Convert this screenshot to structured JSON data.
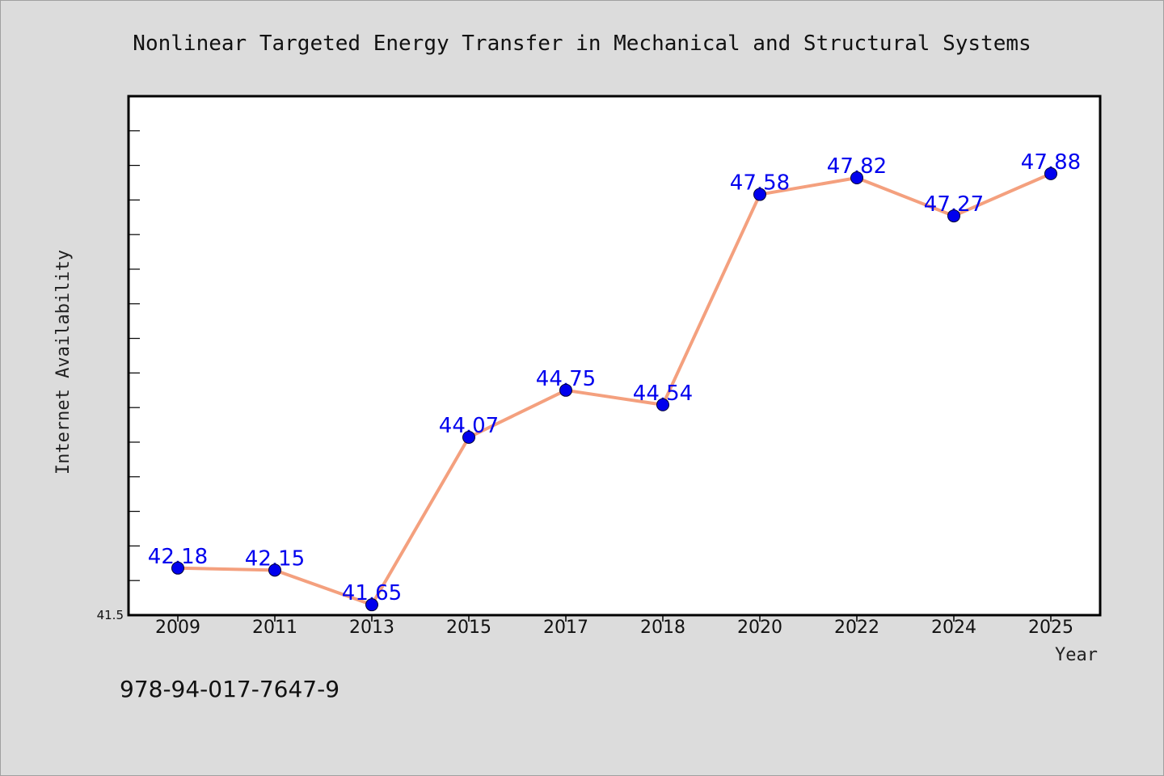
{
  "chart_data": {
    "type": "line",
    "title": "Nonlinear Targeted Energy Transfer in Mechanical and Structural Systems",
    "xlabel": "Year",
    "ylabel": "Internet Availability",
    "categories": [
      "2009",
      "2011",
      "2013",
      "2015",
      "2017",
      "2018",
      "2020",
      "2022",
      "2024",
      "2025"
    ],
    "series": [
      {
        "values": [
          42.18,
          42.15,
          41.65,
          44.07,
          44.75,
          44.54,
          47.58,
          47.82,
          47.27,
          47.88
        ]
      }
    ],
    "data_labels": [
      "42.18",
      "42.15",
      "41.65",
      "44.07",
      "44.75",
      "44.54",
      "47.58",
      "47.82",
      "47.27",
      "47.88"
    ],
    "ylim": [
      41.5,
      49.0
    ],
    "yticks_labeled": [
      {
        "value": 41.5,
        "label": "41.5"
      }
    ],
    "minor_tick_step": 0.5,
    "grid": false,
    "legend": "none",
    "footnote": "978-94-017-7647-9",
    "colors": {
      "background": "#dcdcdc",
      "plot_background": "#ffffff",
      "line": "#f4a07e",
      "marker": "#0000ee",
      "data_label": "#0000ee",
      "frame": "#000000"
    }
  }
}
